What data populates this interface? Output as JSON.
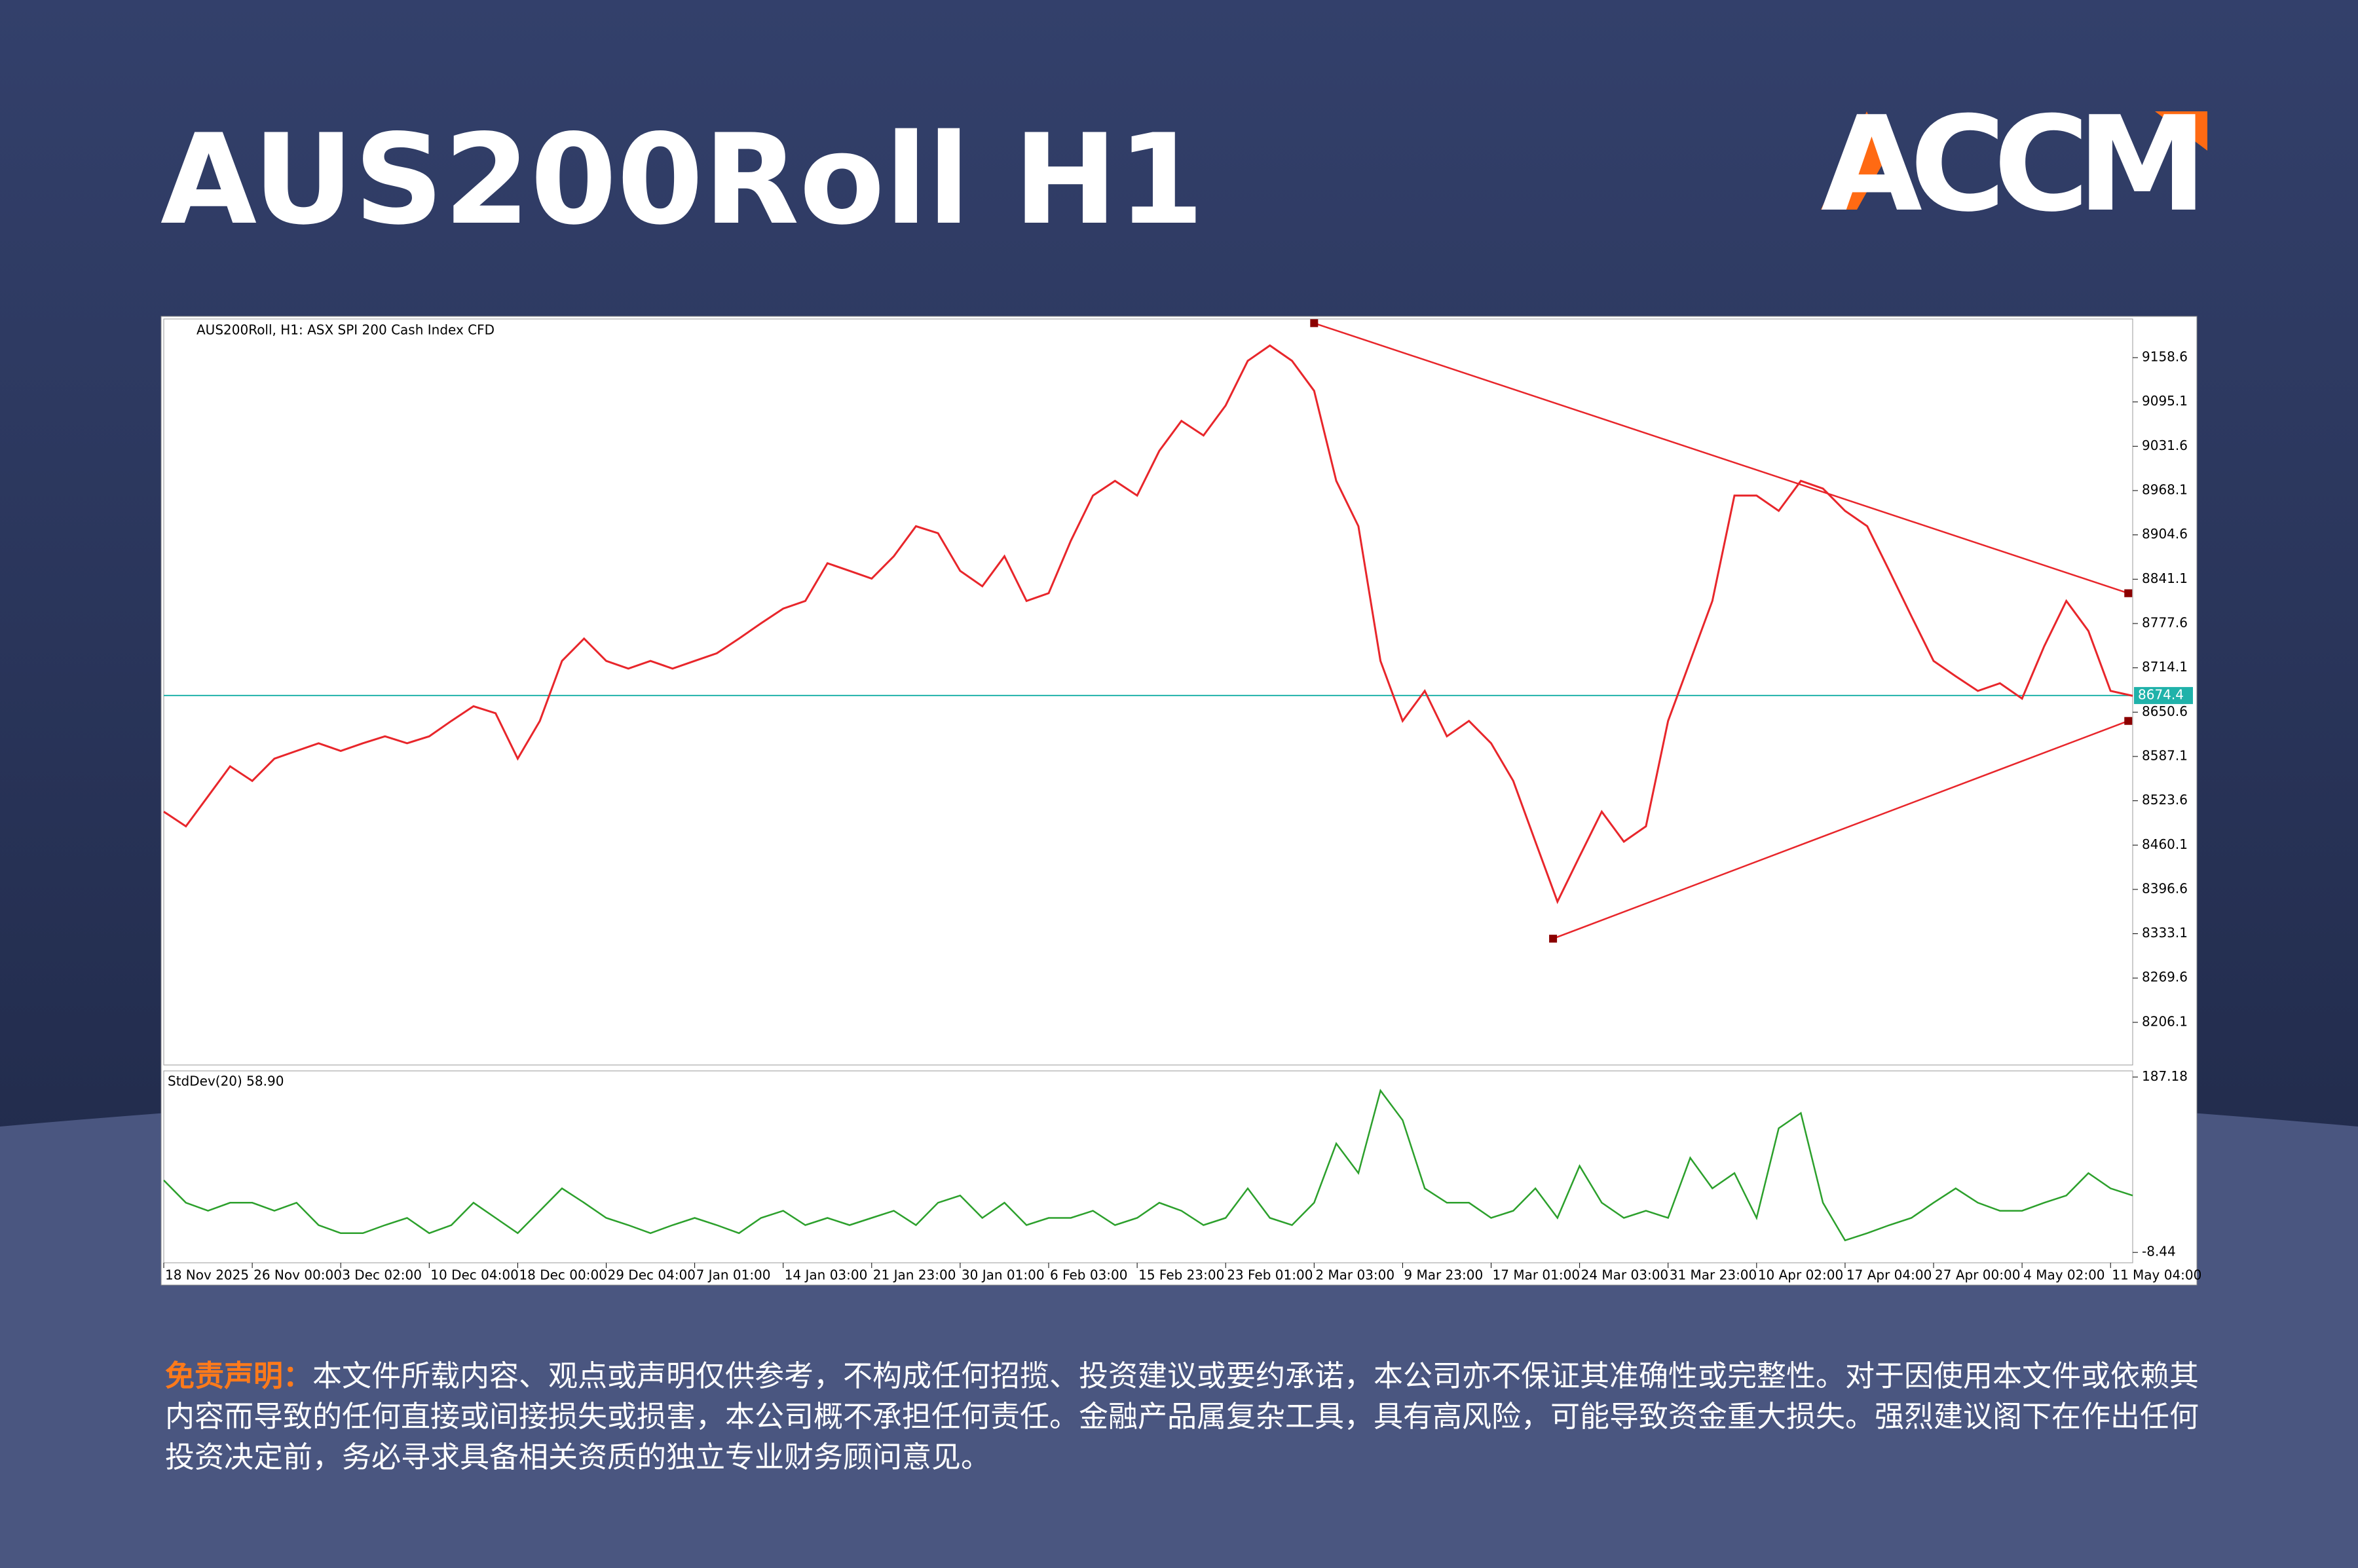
{
  "chart_data": {
    "type": "line",
    "title": "AUS200Roll H1",
    "brand": "ACCM",
    "subtitle": "AUS200Roll, H1:  ASX SPI 200 Cash Index CFD",
    "x": [
      0,
      1,
      2,
      3,
      4,
      5,
      6,
      7,
      8,
      9,
      10,
      11,
      12,
      13,
      14,
      15,
      16,
      17,
      18,
      19,
      20,
      21,
      22,
      23,
      24,
      25,
      26,
      27,
      28,
      29,
      30,
      31,
      32,
      33,
      34,
      35,
      36,
      37,
      38,
      39,
      40,
      41,
      42,
      43,
      44,
      45,
      46,
      47,
      48,
      49,
      50,
      51,
      52,
      53,
      54,
      55,
      56,
      57,
      58,
      59,
      60,
      61,
      62,
      63,
      64,
      65,
      66,
      67,
      68,
      69,
      70,
      71,
      72,
      73,
      74,
      75,
      76,
      77,
      78,
      79,
      80,
      81,
      82,
      83,
      84,
      85,
      86,
      87,
      88,
      89
    ],
    "xlim": [
      0,
      89
    ],
    "xticks": [
      {
        "value": 0,
        "label": "18 Nov 2025"
      },
      {
        "value": 4,
        "label": "26 Nov 00:00"
      },
      {
        "value": 8,
        "label": "3 Dec 02:00"
      },
      {
        "value": 12,
        "label": "10 Dec 04:00"
      },
      {
        "value": 16,
        "label": "18 Dec 00:00"
      },
      {
        "value": 20,
        "label": "29 Dec 04:00"
      },
      {
        "value": 24,
        "label": "7 Jan 01:00"
      },
      {
        "value": 28,
        "label": "14 Jan 03:00"
      },
      {
        "value": 32,
        "label": "21 Jan 23:00"
      },
      {
        "value": 36,
        "label": "30 Jan 01:00"
      },
      {
        "value": 40,
        "label": "6 Feb 03:00"
      },
      {
        "value": 44,
        "label": "15 Feb 23:00"
      },
      {
        "value": 48,
        "label": "23 Feb 01:00"
      },
      {
        "value": 52,
        "label": "2 Mar 03:00"
      },
      {
        "value": 56,
        "label": "9 Mar 23:00"
      },
      {
        "value": 60,
        "label": "17 Mar 01:00"
      },
      {
        "value": 64,
        "label": "24 Mar 03:00"
      },
      {
        "value": 68,
        "label": "31 Mar 23:00"
      },
      {
        "value": 72,
        "label": "10 Apr 02:00"
      },
      {
        "value": 76,
        "label": "17 Apr 04:00"
      },
      {
        "value": 80,
        "label": "27 Apr 00:00"
      },
      {
        "value": 84,
        "label": "4 May 02:00"
      },
      {
        "value": 88,
        "label": "11 May 04:00"
      }
    ],
    "series": [
      {
        "color": "#e8262b",
        "values": [
          8508,
          8487,
          8530,
          8573,
          8552,
          8584,
          8595,
          8606,
          8595,
          8606,
          8616,
          8606,
          8616,
          8638,
          8659,
          8649,
          8584,
          8638,
          8724,
          8756,
          8724,
          8713,
          8724,
          8713,
          8724,
          8735,
          8756,
          8778,
          8799,
          8810,
          8864,
          8853,
          8842,
          8874,
          8917,
          8907,
          8853,
          8831,
          8874,
          8810,
          8821,
          8896,
          8961,
          8982,
          8961,
          9025,
          9068,
          9047,
          9090,
          9154,
          9176,
          9154,
          9111,
          8982,
          8917,
          8724,
          8638,
          8681,
          8616,
          8638,
          8606,
          8552,
          8465,
          8379,
          8444,
          8508,
          8465,
          8487,
          8638,
          8724,
          8810,
          8961,
          8961,
          8939,
          8982,
          8971,
          8939,
          8917,
          8853,
          8788,
          8724,
          8702,
          8681,
          8692,
          8670,
          8745,
          8810,
          8767,
          8681,
          8674
        ]
      }
    ],
    "ylim": [
      8145,
      9214
    ],
    "yticks": [
      9158.6,
      9095.1,
      9031.6,
      8968.1,
      8904.6,
      8841.1,
      8777.6,
      8714.1,
      8650.6,
      8587.1,
      8523.6,
      8460.1,
      8396.6,
      8333.1,
      8269.6,
      8206.1
    ],
    "current_price": 8674.4,
    "current_price_color": "#20b2aa",
    "trendline_color": "#e8262b",
    "trendlines": [
      {
        "x": [
          52,
          88.8
        ],
        "y": [
          9208,
          8821
        ]
      },
      {
        "x": [
          62.8,
          88.8
        ],
        "y": [
          8326,
          8638
        ]
      }
    ],
    "indicator": {
      "label": "StdDev(20) 58.90",
      "color": "#2ca02c",
      "ylim": [
        -20,
        194
      ],
      "yticks": [
        187.18,
        -8.44
      ],
      "values": [
        72,
        47,
        38,
        47,
        47,
        38,
        47,
        22,
        13,
        13,
        22,
        30,
        13,
        22,
        47,
        30,
        13,
        38,
        63,
        47,
        30,
        22,
        13,
        22,
        30,
        22,
        13,
        30,
        38,
        22,
        30,
        22,
        30,
        38,
        22,
        47,
        55,
        30,
        47,
        22,
        30,
        30,
        38,
        22,
        30,
        47,
        38,
        22,
        30,
        63,
        30,
        22,
        47,
        113,
        80,
        172,
        139,
        63,
        47,
        47,
        30,
        38,
        63,
        30,
        88,
        47,
        30,
        38,
        30,
        97,
        63,
        80,
        30,
        130,
        147,
        47,
        5,
        13,
        22,
        30,
        47,
        63,
        47,
        38,
        38,
        47,
        55,
        80,
        63,
        55
      ]
    }
  },
  "disclaimer": {
    "heading": "免责声明：",
    "text": "本文件所载内容、观点或声明仅供参考，不构成任何招揽、投资建议或要约承诺，本公司亦不保证其准确性或完整性。对于因使用本文件或依赖其内容而导致的任何直接或间接损失或损害，本公司概不承担任何责任。金融产品属复杂工具，具有高风险，可能导致资金重大损失。强烈建议阁下在作出任何投资决定前，务必寻求具备相关资质的独立专业财务顾问意见。"
  }
}
